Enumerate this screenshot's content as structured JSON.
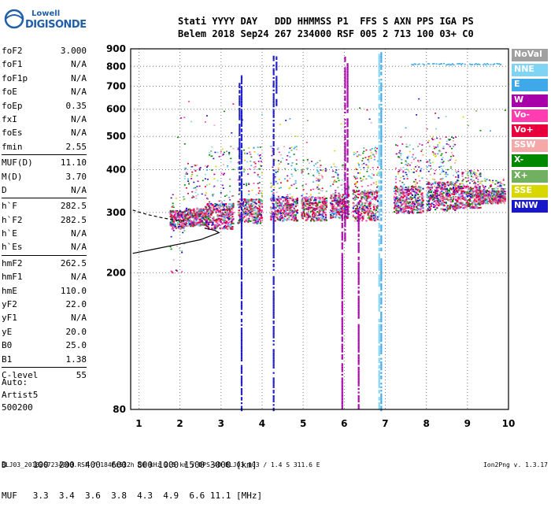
{
  "logo": {
    "line1": "Lowell",
    "line2": "DIGISONDE"
  },
  "header": {
    "line1": "Stati YYYY DAY   DDD HHMMSS P1  FFS S AXN PPS IGA PS",
    "line2": "Belem 2018 Sep24 267 234000 RSF 005 2 713 100 03+ C0"
  },
  "params": [
    {
      "k": "foF2",
      "v": "3.000"
    },
    {
      "k": "foF1",
      "v": "N/A"
    },
    {
      "k": "foF1p",
      "v": "N/A"
    },
    {
      "k": "foE",
      "v": "N/A"
    },
    {
      "k": "foEp",
      "v": "0.35"
    },
    {
      "k": "fxI",
      "v": "N/A"
    },
    {
      "k": "foEs",
      "v": "N/A"
    },
    {
      "k": "fmin",
      "v": "2.55"
    },
    {
      "k": "MUF(D)",
      "v": "11.10",
      "sep": true
    },
    {
      "k": "M(D)",
      "v": "3.70"
    },
    {
      "k": "D",
      "v": "N/A"
    },
    {
      "k": "h`F",
      "v": "282.5",
      "sep": true
    },
    {
      "k": "h`F2",
      "v": "282.5"
    },
    {
      "k": "h`E",
      "v": "N/A"
    },
    {
      "k": "h`Es",
      "v": "N/A"
    },
    {
      "k": "hmF2",
      "v": "262.5",
      "sep": true
    },
    {
      "k": "hmF1",
      "v": "N/A"
    },
    {
      "k": "hmE",
      "v": "110.0"
    },
    {
      "k": "yF2",
      "v": "22.0"
    },
    {
      "k": "yF1",
      "v": "N/A"
    },
    {
      "k": "yE",
      "v": "20.0"
    },
    {
      "k": "B0",
      "v": "25.0"
    },
    {
      "k": "B1",
      "v": "1.38"
    },
    {
      "k": "C-level",
      "v": "55",
      "sep": true
    }
  ],
  "auto": {
    "line1": "Auto:",
    "line2": "Artist5",
    "line3": "500200"
  },
  "legend": [
    {
      "label": "NoVal",
      "color": "#a0a0a0"
    },
    {
      "label": "NNE",
      "color": "#7fd4f4"
    },
    {
      "label": "E",
      "color": "#3fa8e8"
    },
    {
      "label": "W",
      "color": "#a800a8"
    },
    {
      "label": "Vo-",
      "color": "#ff3cb0"
    },
    {
      "label": "Vo+",
      "color": "#e8003c"
    },
    {
      "label": "SSW",
      "color": "#f4a8a8"
    },
    {
      "label": "X-",
      "color": "#008800"
    },
    {
      "label": "X+",
      "color": "#70b060"
    },
    {
      "label": "SSE",
      "color": "#d8d800"
    },
    {
      "label": "NNW",
      "color": "#1818c8"
    }
  ],
  "muf_table": {
    "line1": "D     100  200  400  600  800 1000 1500 3000 [km]",
    "line2": "MUF   3.3  3.4  3.6  3.8  4.3  4.9  6.6 11.1 [MHz]"
  },
  "footer": "BLJ03_2018267234000.RSF / 184fx512h 50 kHz 2.5 km / DPS-4D BLJ03 103 / 1.4 S 311.6 E",
  "version": "Ion2Png v. 1.3.17",
  "chart_data": {
    "type": "scatter",
    "xlim": [
      0.8,
      10
    ],
    "ylim": [
      80,
      900
    ],
    "y_scale": "log",
    "xticks": [
      1,
      2,
      3,
      4,
      5,
      6,
      7,
      8,
      9,
      10
    ],
    "yticks": [
      80,
      200,
      300,
      400,
      500,
      600,
      700,
      800,
      900
    ],
    "grid": true,
    "trace_bands": [
      {
        "x0": 1.75,
        "x1": 2.1,
        "hmin": 270,
        "hmax": 305,
        "dmin": 200,
        "dmax": 340
      },
      {
        "x0": 2.1,
        "x1": 2.65,
        "hmin": 275,
        "hmax": 310,
        "dmin": 330,
        "dmax": 420
      },
      {
        "x0": 2.6,
        "x1": 3.3,
        "hmin": 270,
        "hmax": 320,
        "dmin": 320,
        "dmax": 470
      },
      {
        "x0": 3.4,
        "x1": 4.0,
        "hmin": 280,
        "hmax": 330,
        "dmin": 330,
        "dmax": 470
      },
      {
        "x0": 4.2,
        "x1": 4.85,
        "hmin": 285,
        "hmax": 335,
        "dmin": 335,
        "dmax": 470
      },
      {
        "x0": 4.95,
        "x1": 5.55,
        "hmin": 285,
        "hmax": 335,
        "dmin": 335,
        "dmax": 430
      },
      {
        "x0": 5.65,
        "x1": 6.1,
        "hmin": 290,
        "hmax": 340,
        "dmin": 340,
        "dmax": 420
      },
      {
        "x0": 6.2,
        "x1": 6.8,
        "hmin": 285,
        "hmax": 350,
        "dmin": 350,
        "dmax": 470
      },
      {
        "x0": 7.2,
        "x1": 7.9,
        "hmin": 300,
        "hmax": 360,
        "dmin": 360,
        "dmax": 480
      },
      {
        "x0": 8.0,
        "x1": 8.7,
        "hmin": 305,
        "hmax": 370,
        "dmin": 370,
        "dmax": 500
      },
      {
        "x0": 8.7,
        "x1": 9.3,
        "hmin": 310,
        "hmax": 360,
        "dmin": 360,
        "dmax": 400
      },
      {
        "x0": 9.3,
        "x1": 9.9,
        "hmin": 320,
        "hmax": 350,
        "dmin": 330,
        "dmax": 380
      }
    ],
    "vertical_streaks": [
      {
        "x": 3.5,
        "y0": 80,
        "y1": 760,
        "color": "#1818c8"
      },
      {
        "x": 3.45,
        "y0": 350,
        "y1": 720,
        "color": "#1818c8"
      },
      {
        "x": 4.28,
        "y0": 80,
        "y1": 860,
        "color": "#1818c8"
      },
      {
        "x": 4.35,
        "y0": 620,
        "y1": 860,
        "color": "#1818c8"
      },
      {
        "x": 6.02,
        "y0": 250,
        "y1": 860,
        "color": "#a800a8"
      },
      {
        "x": 6.08,
        "y0": 300,
        "y1": 820,
        "color": "#a800a8"
      },
      {
        "x": 6.35,
        "y0": 80,
        "y1": 330,
        "color": "#a800a8"
      },
      {
        "x": 6.85,
        "y0": 80,
        "y1": 890,
        "color": "#7fd4f4"
      },
      {
        "x": 6.9,
        "y0": 80,
        "y1": 890,
        "color": "#3fa8e8"
      },
      {
        "x": 5.95,
        "y0": 80,
        "y1": 300,
        "color": "#a800a8"
      }
    ],
    "horizontal_trace": {
      "x0": 7.6,
      "x1": 9.8,
      "y": 815,
      "color": "#3fa8e8"
    },
    "ordinary_trace": [
      [
        0.85,
        228
      ],
      [
        1.4,
        235
      ],
      [
        2.0,
        243
      ],
      [
        2.5,
        250
      ],
      [
        2.8,
        258
      ],
      [
        2.95,
        262
      ],
      [
        2.85,
        266
      ],
      [
        2.6,
        270
      ]
    ],
    "dashed_trace": [
      [
        0.85,
        305
      ],
      [
        1.2,
        296
      ],
      [
        1.6,
        289
      ],
      [
        1.9,
        285
      ],
      [
        2.1,
        283
      ]
    ]
  }
}
